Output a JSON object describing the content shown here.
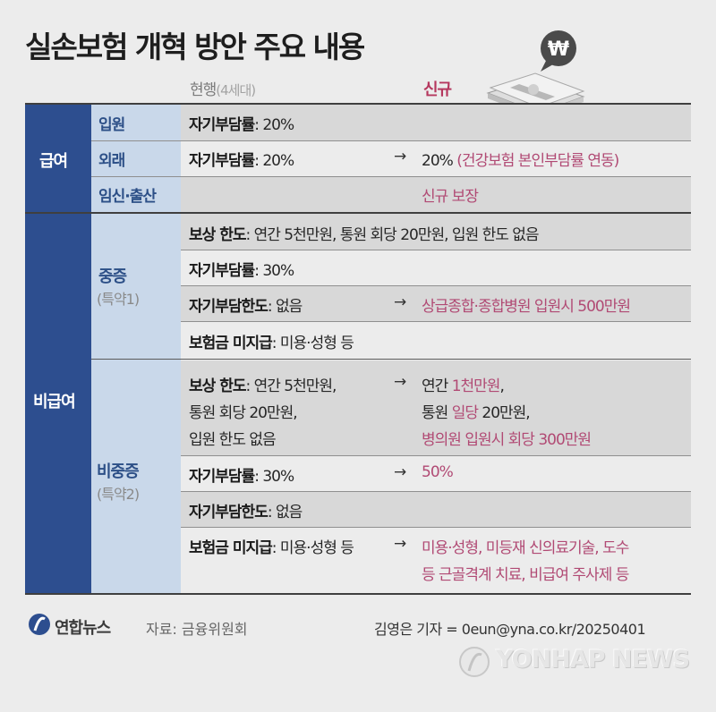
{
  "title": "실손보험 개혁 방안 주요 내용",
  "columns": {
    "current": "현행",
    "current_sub": "(4세대)",
    "new": "신규"
  },
  "colors": {
    "navy": "#2d4e8f",
    "light_blue": "#c9d8ea",
    "pink": "#b14a74",
    "row_dark": "#d8d8d8",
    "row_light": "#ececec"
  },
  "benefits": {
    "label": "급여",
    "rows": [
      {
        "sub": "입원",
        "current_label": "자기부담률",
        "current_value": ": 20%",
        "new": ""
      },
      {
        "sub": "외래",
        "current_label": "자기부담률",
        "current_value": ": 20%",
        "new_value": "20%",
        "new_note": "(건강보험 본인부담률 연동)"
      },
      {
        "sub": "임신·출산",
        "current_label": "",
        "current_value": "",
        "new": "신규 보장"
      }
    ]
  },
  "non_benefits": {
    "label": "비급여",
    "severe": {
      "label": "중증",
      "sub": "(특약1)",
      "rows": [
        {
          "label": "보상 한도",
          "value": ": 연간 5천만원, 통원 회당 20만원, 입원 한도 없음",
          "new": ""
        },
        {
          "label": "자기부담률",
          "value": ": 30%",
          "new": ""
        },
        {
          "label": "자기부담한도",
          "value": ": 없음",
          "new": "상급종합·종합병원 입원시 500만원"
        },
        {
          "label": "보험금 미지급",
          "value": ": 미용·성형 등",
          "new": ""
        }
      ]
    },
    "non_severe": {
      "label": "비중증",
      "sub": "(특약2)",
      "limit": {
        "label": "보상 한도",
        "lines": [
          ": 연간 5천만원,",
          "통원 회당 20만원,",
          "입원 한도 없음"
        ],
        "new_lines": [
          {
            "prefix": "연간 ",
            "highlight": "1천만원",
            "suffix": ","
          },
          {
            "prefix": "통원 ",
            "highlight": "일당",
            "suffix": " 20만원,"
          },
          {
            "prefix": "",
            "highlight": "병의원 입원시 회당 300만원",
            "suffix": ""
          }
        ]
      },
      "copay": {
        "label": "자기부담률",
        "value": ": 30%",
        "new": "50%"
      },
      "copay_limit": {
        "label": "자기부담한도",
        "value": ": 없음"
      },
      "no_pay": {
        "label": "보험금 미지급",
        "value": ": 미용·성형 등",
        "new_lines": [
          "미용·성형, 미등재 신의료기술, 도수",
          "등 근골격계 치료, 비급여 주사제 등"
        ]
      }
    }
  },
  "footer": {
    "logo": "연합뉴스",
    "source": "자료: 금융위원회",
    "credit": "김영은 기자 = 0eun@yna.co.kr/20250401",
    "watermark": "YONHAP NEWS"
  },
  "icons": {
    "money": "won-banknote-icon",
    "logo": "yonhap-logo-icon",
    "arrow": "right-arrow-icon"
  }
}
